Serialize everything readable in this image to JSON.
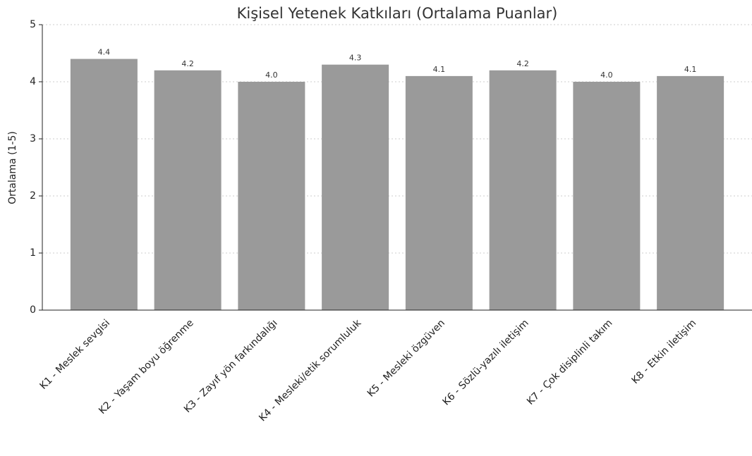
{
  "chart_data": {
    "type": "bar",
    "title": "Kişisel Yetenek Katkıları (Ortalama Puanlar)",
    "y_label": "Ortalama (1-5)",
    "categories": [
      "K1 - Meslek sevgisi",
      "K2 - Yaşam boyu öğrenme",
      "K3 - Zayıf yön farkındalığı",
      "K4 - Mesleki/etik sorumluluk",
      "K5 - Mesleki özgüven",
      "K6 - Sözlü-yazılı iletişim",
      "K7 - Çok disiplinli takım",
      "K8 - Etkin iletişim"
    ],
    "values": [
      4.4,
      4.2,
      4.0,
      4.3,
      4.1,
      4.2,
      4.0,
      4.1
    ],
    "value_labels": [
      "4.4",
      "4.2",
      "4.0",
      "4.3",
      "4.1",
      "4.2",
      "4.0",
      "4.1"
    ],
    "color": "#9a9a9a",
    "ylim": [
      0,
      5
    ],
    "yticks": [
      0,
      1,
      2,
      3,
      4,
      5
    ],
    "grid": true
  }
}
